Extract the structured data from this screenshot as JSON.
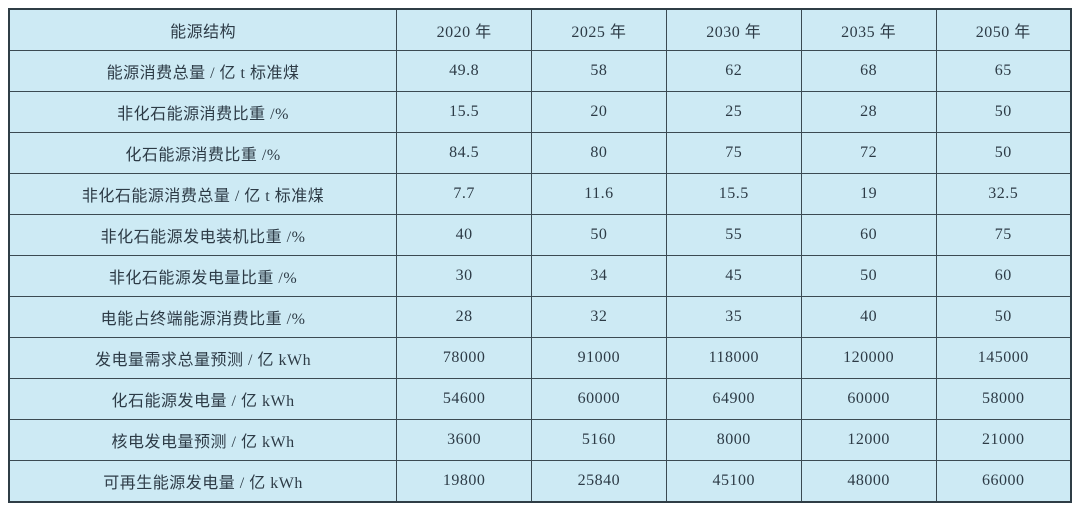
{
  "chart_data": {
    "type": "table",
    "title": "",
    "corner_label": "能源结构",
    "columns": [
      "2020 年",
      "2025 年",
      "2030 年",
      "2035 年",
      "2050 年"
    ],
    "rows": [
      {
        "label": "能源消费总量 / 亿 t 标准煤",
        "values": [
          "49.8",
          "58",
          "62",
          "68",
          "65"
        ]
      },
      {
        "label": "非化石能源消费比重 /%",
        "values": [
          "15.5",
          "20",
          "25",
          "28",
          "50"
        ]
      },
      {
        "label": "化石能源消费比重 /%",
        "values": [
          "84.5",
          "80",
          "75",
          "72",
          "50"
        ]
      },
      {
        "label": "非化石能源消费总量 / 亿 t 标准煤",
        "values": [
          "7.7",
          "11.6",
          "15.5",
          "19",
          "32.5"
        ]
      },
      {
        "label": "非化石能源发电装机比重 /%",
        "values": [
          "40",
          "50",
          "55",
          "60",
          "75"
        ]
      },
      {
        "label": "非化石能源发电量比重 /%",
        "values": [
          "30",
          "34",
          "45",
          "50",
          "60"
        ]
      },
      {
        "label": "电能占终端能源消费比重 /%",
        "values": [
          "28",
          "32",
          "35",
          "40",
          "50"
        ]
      },
      {
        "label": "发电量需求总量预测 / 亿 kWh",
        "values": [
          "78000",
          "91000",
          "118000",
          "120000",
          "145000"
        ]
      },
      {
        "label": "化石能源发电量 / 亿 kWh",
        "values": [
          "54600",
          "60000",
          "64900",
          "60000",
          "58000"
        ]
      },
      {
        "label": "核电发电量预测 / 亿 kWh",
        "values": [
          "3600",
          "5160",
          "8000",
          "12000",
          "21000"
        ]
      },
      {
        "label": "可再生能源发电量 / 亿 kWh",
        "values": [
          "19800",
          "25840",
          "45100",
          "48000",
          "66000"
        ]
      }
    ],
    "colors": {
      "cell_background": "#cdeaf4",
      "border": "#3b4a52",
      "text": "#2d3b46"
    },
    "layout": {
      "grid": "on",
      "header_position": "top-row",
      "label_column_position": "left"
    }
  }
}
